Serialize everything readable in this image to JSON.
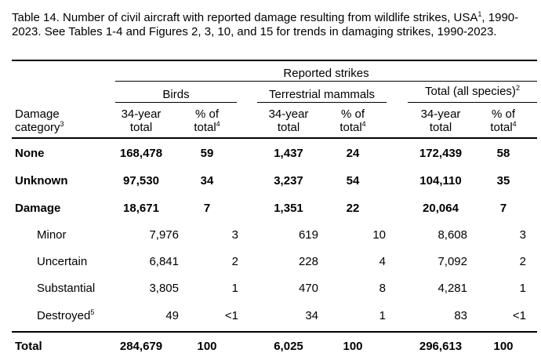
{
  "caption": {
    "text_a": "Table 14. Number of civil aircraft with reported damage resulting from wildlife strikes, USA",
    "sup_a": "1",
    "text_b": ", 1990-2023. See Tables 1-4 and Figures 2, 3, 10, and 15 for trends in damaging strikes, 1990-2023."
  },
  "header": {
    "super_title": "Reported strikes",
    "groups": {
      "birds": "Birds",
      "mammals": "Terrestrial mammals",
      "total_label": "Total (all species)",
      "total_sup": "2"
    },
    "row_label_line1": "Damage",
    "row_label_line2": "category",
    "row_label_sup": "3",
    "col_total_line1": "34-year",
    "col_total_line2": "total",
    "col_pct_line1": "% of",
    "col_pct_line2": "total",
    "col_pct_sup": "4"
  },
  "rows": [
    {
      "label": "None",
      "sup": "",
      "bold": true,
      "indent": false,
      "birds_total": "168,478",
      "birds_pct": "59",
      "mammals_total": "1,437",
      "mammals_pct": "24",
      "all_total": "172,439",
      "all_pct": "58"
    },
    {
      "label": "Unknown",
      "sup": "",
      "bold": true,
      "indent": false,
      "birds_total": "97,530",
      "birds_pct": "34",
      "mammals_total": "3,237",
      "mammals_pct": "54",
      "all_total": "104,110",
      "all_pct": "35"
    },
    {
      "label": "Damage",
      "sup": "",
      "bold": true,
      "indent": false,
      "birds_total": "18,671",
      "birds_pct": "7",
      "mammals_total": "1,351",
      "mammals_pct": "22",
      "all_total": "20,064",
      "all_pct": "7"
    },
    {
      "label": "Minor",
      "sup": "",
      "bold": false,
      "indent": true,
      "birds_total": "7,976",
      "birds_pct": "3",
      "mammals_total": "619",
      "mammals_pct": "10",
      "all_total": "8,608",
      "all_pct": "3"
    },
    {
      "label": "Uncertain",
      "sup": "",
      "bold": false,
      "indent": true,
      "birds_total": "6,841",
      "birds_pct": "2",
      "mammals_total": "228",
      "mammals_pct": "4",
      "all_total": "7,092",
      "all_pct": "2"
    },
    {
      "label": "Substantial",
      "sup": "",
      "bold": false,
      "indent": true,
      "birds_total": "3,805",
      "birds_pct": "1",
      "mammals_total": "470",
      "mammals_pct": "8",
      "all_total": "4,281",
      "all_pct": "1"
    },
    {
      "label": "Destroyed",
      "sup": "5",
      "bold": false,
      "indent": true,
      "birds_total": "49",
      "birds_pct": "<1",
      "mammals_total": "34",
      "mammals_pct": "1",
      "all_total": "83",
      "all_pct": "<1"
    }
  ],
  "total_row": {
    "label": "Total",
    "birds_total": "284,679",
    "birds_pct": "100",
    "mammals_total": "6,025",
    "mammals_pct": "100",
    "all_total": "296,613",
    "all_pct": "100"
  }
}
